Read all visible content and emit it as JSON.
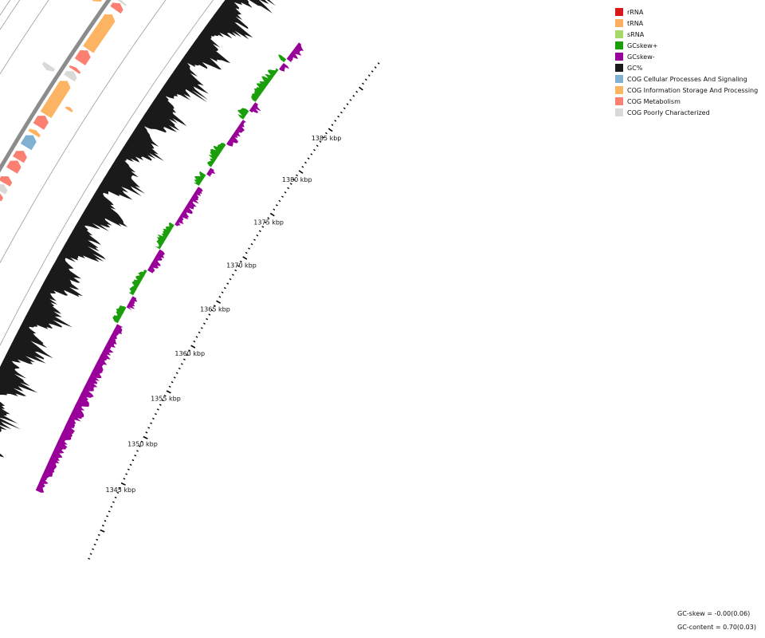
{
  "legend": [
    {
      "label": "rRNA",
      "color": "#d7191c"
    },
    {
      "label": "tRNA",
      "color": "#fdae61"
    },
    {
      "label": "sRNA",
      "color": "#a6d96a"
    },
    {
      "label": "GCskew+",
      "color": "#1a9e0a"
    },
    {
      "label": "GCskew-",
      "color": "#990099"
    },
    {
      "label": "GC%",
      "color": "#1a1a1a"
    },
    {
      "label": "COG Cellular Processes And Signaling",
      "color": "#80b1d3"
    },
    {
      "label": "COG Information Storage And Processing",
      "color": "#fdb462"
    },
    {
      "label": "COG Metabolism",
      "color": "#fb8072"
    },
    {
      "label": "COG Poorly Characterized",
      "color": "#d9d9d9"
    }
  ],
  "ticks": [
    "1345 kbp",
    "1350 kbp",
    "1355 kbp",
    "1360 kbp",
    "1365 kbp",
    "1370 kbp",
    "1375 kbp",
    "1380 kbp",
    "1385 kbp"
  ],
  "stats": {
    "gc_skew": "GC-skew = -0.00(0.06)",
    "gc_content": "GC-content = 0.70(0.03)"
  },
  "map": {
    "region_start_kbp": 1341,
    "region_end_kbp": 1390,
    "skew_segments": [
      {
        "s": 1341,
        "e": 1358.5,
        "sign": "-"
      },
      {
        "s": 1358.5,
        "e": 1360.2,
        "sign": "+"
      },
      {
        "s": 1360.2,
        "e": 1361.5,
        "sign": "-"
      },
      {
        "s": 1361.5,
        "e": 1364.2,
        "sign": "+"
      },
      {
        "s": 1364.2,
        "e": 1366.5,
        "sign": "-"
      },
      {
        "s": 1366.5,
        "e": 1369.2,
        "sign": "+"
      },
      {
        "s": 1369.2,
        "e": 1373.5,
        "sign": "-"
      },
      {
        "s": 1373.5,
        "e": 1374.8,
        "sign": "+"
      },
      {
        "s": 1374.8,
        "e": 1375.6,
        "sign": "-"
      },
      {
        "s": 1375.6,
        "e": 1378.2,
        "sign": "+"
      },
      {
        "s": 1378.2,
        "e": 1381.0,
        "sign": "-"
      },
      {
        "s": 1381.0,
        "e": 1382.0,
        "sign": "+"
      },
      {
        "s": 1382.0,
        "e": 1383.0,
        "sign": "-"
      },
      {
        "s": 1383.0,
        "e": 1386.8,
        "sign": "+"
      },
      {
        "s": 1386.8,
        "e": 1387.6,
        "sign": "-"
      },
      {
        "s": 1387.6,
        "e": 1388.0,
        "sign": "+"
      },
      {
        "s": 1388.0,
        "e": 1390.0,
        "sign": "-"
      }
    ],
    "forward_genes": [
      {
        "s": 1357.5,
        "e": 1357.7,
        "cat": "tRNA"
      },
      {
        "s": 1360.5,
        "e": 1360.7,
        "cat": "tRNA"
      },
      {
        "s": 1363.0,
        "e": 1363.6,
        "cat": "Metabolism"
      },
      {
        "s": 1363.7,
        "e": 1364.4,
        "cat": "Poorly"
      },
      {
        "s": 1364.5,
        "e": 1365.2,
        "cat": "Metabolism"
      },
      {
        "s": 1365.8,
        "e": 1366.8,
        "cat": "Metabolism"
      },
      {
        "s": 1366.9,
        "e": 1367.8,
        "cat": "Metabolism"
      },
      {
        "s": 1368.2,
        "e": 1369.4,
        "cat": "Cellular"
      },
      {
        "s": 1369.5,
        "e": 1369.9,
        "cat": "Information"
      },
      {
        "s": 1370.3,
        "e": 1371.4,
        "cat": "Metabolism"
      },
      {
        "s": 1371.5,
        "e": 1375.0,
        "cat": "Information"
      },
      {
        "s": 1375.3,
        "e": 1376.0,
        "cat": "Poorly"
      },
      {
        "s": 1376.1,
        "e": 1376.4,
        "cat": "Metabolism"
      },
      {
        "s": 1377.0,
        "e": 1378.2,
        "cat": "Metabolism"
      },
      {
        "s": 1378.3,
        "e": 1382.0,
        "cat": "Information"
      },
      {
        "s": 1382.5,
        "e": 1383.2,
        "cat": "Metabolism"
      },
      {
        "s": 1383.3,
        "e": 1383.5,
        "cat": "Poorly"
      },
      {
        "s": 1386.0,
        "e": 1386.9,
        "cat": "Cellular"
      },
      {
        "s": 1387.0,
        "e": 1387.9,
        "cat": "Cellular"
      },
      {
        "s": 1388.0,
        "e": 1388.7,
        "cat": "Cellular"
      },
      {
        "s": 1388.8,
        "e": 1389.3,
        "cat": "Cellular"
      },
      {
        "s": 1389.4,
        "e": 1390.0,
        "cat": "Cellular"
      }
    ],
    "forward_outer": [
      {
        "s": 1357.4,
        "e": 1357.7,
        "cat": "tRNA"
      },
      {
        "s": 1360.3,
        "e": 1360.6,
        "cat": "tRNA"
      },
      {
        "s": 1372.9,
        "e": 1373.2,
        "cat": "tRNA"
      },
      {
        "s": 1388.8,
        "e": 1389.2,
        "cat": "tRNA"
      }
    ],
    "reverse_genes": [
      {
        "s": 1341.0,
        "e": 1342.3,
        "cat": "Cellular"
      },
      {
        "s": 1342.6,
        "e": 1342.9,
        "cat": "Poorly"
      },
      {
        "s": 1343.3,
        "e": 1343.7,
        "cat": "Poorly"
      },
      {
        "s": 1344.0,
        "e": 1344.4,
        "cat": "Poorly"
      },
      {
        "s": 1345.0,
        "e": 1346.3,
        "cat": "Poorly"
      },
      {
        "s": 1346.6,
        "e": 1347.1,
        "cat": "Poorly"
      },
      {
        "s": 1347.3,
        "e": 1348.4,
        "cat": "Poorly"
      },
      {
        "s": 1348.6,
        "e": 1349.0,
        "cat": "Poorly"
      },
      {
        "s": 1349.2,
        "e": 1349.6,
        "cat": "Poorly"
      },
      {
        "s": 1350.3,
        "e": 1350.8,
        "cat": "Information"
      },
      {
        "s": 1351.0,
        "e": 1353.0,
        "cat": "Cellular"
      },
      {
        "s": 1353.3,
        "e": 1353.7,
        "cat": "Poorly"
      },
      {
        "s": 1353.9,
        "e": 1354.3,
        "cat": "Poorly"
      },
      {
        "s": 1354.6,
        "e": 1355.3,
        "cat": "Poorly"
      },
      {
        "s": 1355.6,
        "e": 1356.0,
        "cat": "Poorly"
      },
      {
        "s": 1356.2,
        "e": 1356.4,
        "cat": "Poorly"
      },
      {
        "s": 1356.5,
        "e": 1357.6,
        "cat": "Information"
      },
      {
        "s": 1358.2,
        "e": 1360.1,
        "cat": "Information"
      },
      {
        "s": 1374.8,
        "e": 1375.3,
        "cat": "Poorly"
      },
      {
        "s": 1382.0,
        "e": 1384.3,
        "cat": "Information"
      }
    ],
    "reverse_inner": [
      {
        "s": 1357.2,
        "e": 1357.6,
        "cat": "Poorly"
      }
    ]
  }
}
